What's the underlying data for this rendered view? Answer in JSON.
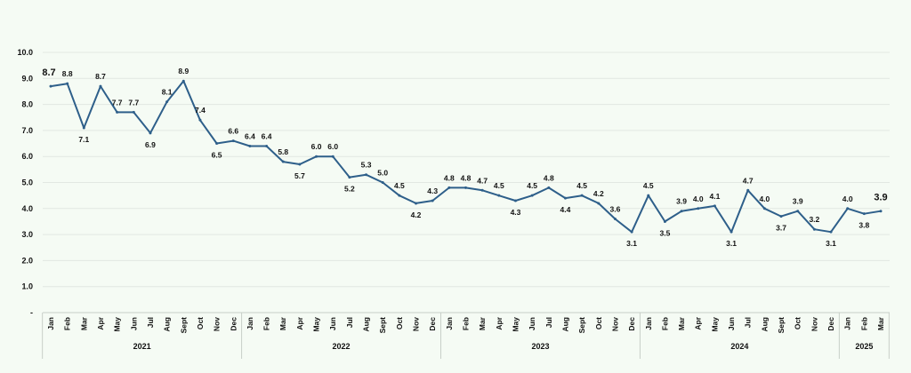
{
  "chart_data": {
    "type": "line",
    "title": "",
    "xlabel": "",
    "ylabel": "",
    "ylim": [
      0,
      10
    ],
    "yticks": [
      "-",
      "1.0",
      "2.0",
      "3.0",
      "4.0",
      "5.0",
      "6.0",
      "7.0",
      "8.0",
      "9.0",
      "10.0"
    ],
    "grid": true,
    "line_color": "#2e5f8a",
    "categories": [
      "Jan",
      "Feb",
      "Mar",
      "Apr",
      "May",
      "Jun",
      "Jul",
      "Aug",
      "Sept",
      "Oct",
      "Nov",
      "Dec",
      "Jan",
      "Feb",
      "Mar",
      "Apr",
      "May",
      "Jun",
      "Jul",
      "Aug",
      "Sept",
      "Oct",
      "Nov",
      "Dec",
      "Jan",
      "Feb",
      "Mar",
      "Apr",
      "May",
      "Jun",
      "Jul",
      "Aug",
      "Sept",
      "Oct",
      "Nov",
      "Dec",
      "Jan",
      "Feb",
      "Mar",
      "Apr",
      "May",
      "Jun",
      "Jul",
      "Aug",
      "Sept",
      "Oct",
      "Nov",
      "Dec",
      "Jan",
      "Feb",
      "Mar"
    ],
    "values": [
      8.7,
      8.8,
      7.1,
      8.7,
      7.7,
      7.7,
      6.9,
      8.1,
      8.9,
      7.4,
      6.5,
      6.6,
      6.4,
      6.4,
      5.8,
      5.7,
      6.0,
      6.0,
      5.2,
      5.3,
      5.0,
      4.5,
      4.2,
      4.3,
      4.8,
      4.8,
      4.7,
      4.5,
      4.3,
      4.5,
      4.8,
      4.4,
      4.5,
      4.2,
      3.6,
      3.1,
      4.5,
      3.5,
      3.9,
      4.0,
      4.1,
      3.1,
      4.7,
      4.0,
      3.7,
      3.9,
      3.2,
      3.1,
      4.0,
      3.8,
      3.9
    ],
    "years": [
      {
        "label": "2021",
        "months": 12
      },
      {
        "label": "2022",
        "months": 12
      },
      {
        "label": "2023",
        "months": 12
      },
      {
        "label": "2024",
        "months": 12
      },
      {
        "label": "2025",
        "months": 3
      }
    ]
  }
}
